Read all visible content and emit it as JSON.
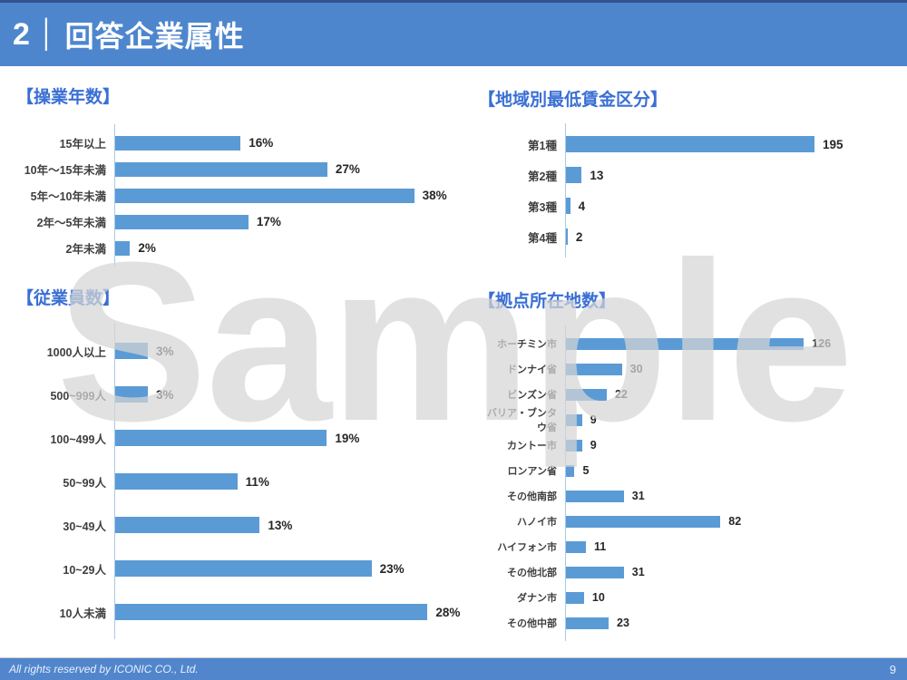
{
  "header": {
    "section_number": "2",
    "separator": "│",
    "title": "回答企業属性"
  },
  "chart_data": [
    {
      "type": "bar",
      "orientation": "horizontal",
      "title": "【操業年数】",
      "categories": [
        "15年以上",
        "10年～15年未満",
        "5年～10年未満",
        "2年～5年未満",
        "2年未満"
      ],
      "values": [
        16,
        27,
        38,
        17,
        2
      ],
      "value_suffix": "%",
      "xlim": [
        0,
        40
      ],
      "grid": false,
      "bar_color": "#5B9BD5"
    },
    {
      "type": "bar",
      "orientation": "horizontal",
      "title": "【地域別最低賃金区分】",
      "categories": [
        "第1種",
        "第2種",
        "第3種",
        "第4種"
      ],
      "values": [
        195,
        13,
        4,
        2
      ],
      "value_suffix": "",
      "xlim": [
        0,
        200
      ],
      "grid": false,
      "bar_color": "#5B9BD5"
    },
    {
      "type": "bar",
      "orientation": "horizontal",
      "title": "【従業員数】",
      "categories": [
        "1000人以上",
        "500~999人",
        "100~499人",
        "50~99人",
        "30~49人",
        "10~29人",
        "10人未満"
      ],
      "values": [
        3,
        3,
        19,
        11,
        13,
        23,
        28
      ],
      "value_suffix": "%",
      "xlim": [
        0,
        30
      ],
      "grid": false,
      "bar_color": "#5B9BD5"
    },
    {
      "type": "bar",
      "orientation": "horizontal",
      "title": "【拠点所在地数】",
      "categories": [
        "ホーチミン市",
        "ドンナイ省",
        "ビンズン省",
        "バリア・ブンタウ省",
        "カントー市",
        "ロンアン省",
        "その他南部",
        "ハノイ市",
        "ハイフォン市",
        "その他北部",
        "ダナン市",
        "その他中部"
      ],
      "values": [
        126,
        30,
        22,
        9,
        9,
        5,
        31,
        82,
        11,
        31,
        10,
        23
      ],
      "value_suffix": "",
      "xlim": [
        0,
        135
      ],
      "grid": false,
      "bar_color": "#5B9BD5"
    }
  ],
  "watermark": {
    "text": "Sample"
  },
  "footer": {
    "copyright": "All rights reserved by ICONIC CO., Ltd.",
    "page_number": "9"
  },
  "colors": {
    "header_bg": "#4E86CE",
    "header_top_line": "#31538C",
    "footer_bg": "#5186CD",
    "chart_title_text": "#3A6FD4",
    "bar": "#5B9BD5",
    "axis_line": "#A6C9EC",
    "category_text": "#3F3F3F",
    "value_text": "#262626",
    "watermark": "#D6D6D6"
  }
}
